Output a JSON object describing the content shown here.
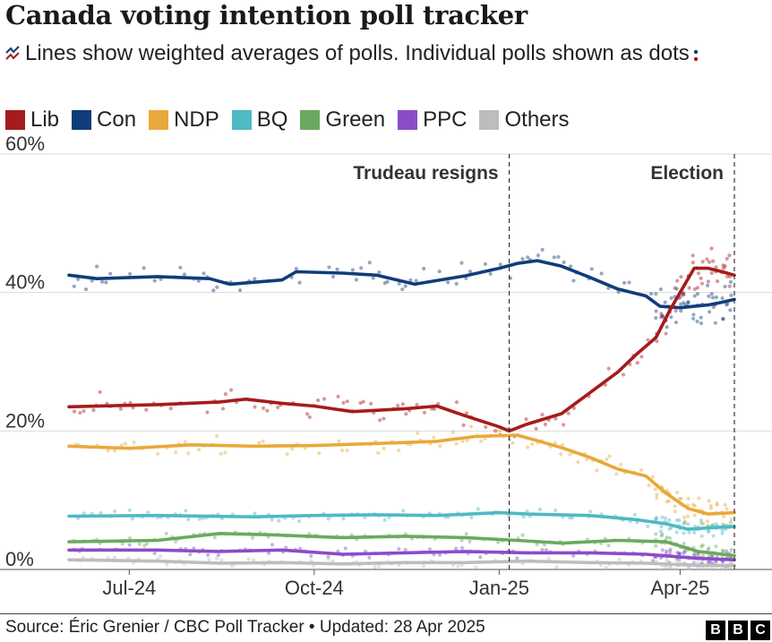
{
  "title": "Canada voting intention poll tracker",
  "subtitle": "Lines show weighted averages of polls. Individual polls shown as dots",
  "source": "Source: Éric Grenier / CBC Poll Tracker • Updated: 28 Apr 2025",
  "logo": [
    "B",
    "B",
    "C"
  ],
  "chart_data": {
    "type": "line",
    "title": "Canada voting intention poll tracker",
    "xlabel": "",
    "ylabel": "",
    "ylim": [
      0,
      60
    ],
    "yticks": [
      0,
      20,
      40,
      60
    ],
    "ytick_labels": [
      "0%",
      "20%",
      "40%",
      "60%"
    ],
    "xlim": [
      "2024-06-01",
      "2025-04-28"
    ],
    "xticks": [
      {
        "date": "2024-07-01",
        "label": "Jul-24"
      },
      {
        "date": "2024-10-01",
        "label": "Oct-24"
      },
      {
        "date": "2025-01-01",
        "label": "Jan-25"
      },
      {
        "date": "2025-04-01",
        "label": "Apr-25"
      }
    ],
    "grid": true,
    "legend_position": "top",
    "annotations": [
      {
        "date": "2025-01-06",
        "label": "Trudeau resigns"
      },
      {
        "date": "2025-04-28",
        "label": "Election"
      }
    ],
    "series": [
      {
        "name": "Lib",
        "color": "#a61b1b",
        "points": [
          [
            "2024-06-01",
            23.5
          ],
          [
            "2024-07-15",
            23.8
          ],
          [
            "2024-08-15",
            24.2
          ],
          [
            "2024-08-28",
            24.6
          ],
          [
            "2024-09-15",
            24.0
          ],
          [
            "2024-10-01",
            23.6
          ],
          [
            "2024-10-20",
            22.8
          ],
          [
            "2024-11-15",
            23.2
          ],
          [
            "2024-12-01",
            23.6
          ],
          [
            "2024-12-15",
            22.2
          ],
          [
            "2025-01-01",
            20.6
          ],
          [
            "2025-01-06",
            20.0
          ],
          [
            "2025-01-15",
            21.0
          ],
          [
            "2025-02-01",
            22.5
          ],
          [
            "2025-02-15",
            25.5
          ],
          [
            "2025-03-01",
            28.5
          ],
          [
            "2025-03-10",
            31.0
          ],
          [
            "2025-03-20",
            33.5
          ],
          [
            "2025-03-27",
            37.5
          ],
          [
            "2025-04-01",
            40.0
          ],
          [
            "2025-04-08",
            43.5
          ],
          [
            "2025-04-15",
            43.5
          ],
          [
            "2025-04-22",
            43.0
          ],
          [
            "2025-04-28",
            42.5
          ]
        ]
      },
      {
        "name": "Con",
        "color": "#0f3d7a",
        "points": [
          [
            "2024-06-01",
            42.5
          ],
          [
            "2024-06-15",
            42.0
          ],
          [
            "2024-07-15",
            42.3
          ],
          [
            "2024-08-10",
            42.0
          ],
          [
            "2024-08-20",
            41.2
          ],
          [
            "2024-09-15",
            41.8
          ],
          [
            "2024-09-22",
            43.0
          ],
          [
            "2024-10-15",
            42.8
          ],
          [
            "2024-11-01",
            42.5
          ],
          [
            "2024-11-20",
            41.2
          ],
          [
            "2024-12-15",
            42.4
          ],
          [
            "2025-01-01",
            43.5
          ],
          [
            "2025-01-10",
            44.2
          ],
          [
            "2025-01-20",
            44.6
          ],
          [
            "2025-02-01",
            43.8
          ],
          [
            "2025-02-15",
            42.2
          ],
          [
            "2025-03-01",
            40.5
          ],
          [
            "2025-03-15",
            39.5
          ],
          [
            "2025-03-22",
            38.0
          ],
          [
            "2025-04-01",
            37.8
          ],
          [
            "2025-04-08",
            38.0
          ],
          [
            "2025-04-15",
            38.2
          ],
          [
            "2025-04-22",
            38.6
          ],
          [
            "2025-04-28",
            39.0
          ]
        ]
      },
      {
        "name": "NDP",
        "color": "#e8a93a",
        "points": [
          [
            "2024-06-01",
            17.8
          ],
          [
            "2024-07-01",
            17.5
          ],
          [
            "2024-08-01",
            18.0
          ],
          [
            "2024-09-01",
            17.8
          ],
          [
            "2024-10-01",
            17.9
          ],
          [
            "2024-11-01",
            18.2
          ],
          [
            "2024-12-01",
            18.5
          ],
          [
            "2024-12-20",
            19.2
          ],
          [
            "2025-01-10",
            19.4
          ],
          [
            "2025-01-20",
            18.6
          ],
          [
            "2025-02-01",
            17.6
          ],
          [
            "2025-02-15",
            16.2
          ],
          [
            "2025-03-01",
            14.5
          ],
          [
            "2025-03-15",
            13.5
          ],
          [
            "2025-03-25",
            11.0
          ],
          [
            "2025-04-05",
            8.8
          ],
          [
            "2025-04-15",
            8.0
          ],
          [
            "2025-04-28",
            8.2
          ]
        ]
      },
      {
        "name": "BQ",
        "color": "#4fb9c4",
        "points": [
          [
            "2024-06-01",
            7.7
          ],
          [
            "2024-07-15",
            7.8
          ],
          [
            "2024-09-01",
            7.6
          ],
          [
            "2024-10-01",
            7.8
          ],
          [
            "2024-11-01",
            7.9
          ],
          [
            "2024-12-01",
            7.8
          ],
          [
            "2025-01-01",
            8.2
          ],
          [
            "2025-01-15",
            8.0
          ],
          [
            "2025-02-15",
            7.8
          ],
          [
            "2025-03-10",
            7.2
          ],
          [
            "2025-03-25",
            6.6
          ],
          [
            "2025-04-05",
            5.8
          ],
          [
            "2025-04-15",
            6.0
          ],
          [
            "2025-04-28",
            6.2
          ]
        ]
      },
      {
        "name": "Green",
        "color": "#6aaa5f",
        "points": [
          [
            "2024-06-01",
            4.0
          ],
          [
            "2024-07-15",
            4.2
          ],
          [
            "2024-08-15",
            5.2
          ],
          [
            "2024-09-10",
            5.0
          ],
          [
            "2024-10-15",
            4.6
          ],
          [
            "2024-11-15",
            4.8
          ],
          [
            "2024-12-15",
            4.6
          ],
          [
            "2025-01-10",
            4.2
          ],
          [
            "2025-02-01",
            3.8
          ],
          [
            "2025-03-01",
            4.2
          ],
          [
            "2025-03-25",
            4.0
          ],
          [
            "2025-04-10",
            2.6
          ],
          [
            "2025-04-28",
            2.0
          ]
        ]
      },
      {
        "name": "PPC",
        "color": "#8a4cc9",
        "points": [
          [
            "2024-06-01",
            2.8
          ],
          [
            "2024-07-15",
            2.8
          ],
          [
            "2024-08-15",
            2.6
          ],
          [
            "2024-09-15",
            2.8
          ],
          [
            "2024-10-15",
            2.2
          ],
          [
            "2024-11-15",
            2.4
          ],
          [
            "2024-12-15",
            2.6
          ],
          [
            "2025-01-15",
            2.4
          ],
          [
            "2025-02-15",
            2.4
          ],
          [
            "2025-03-15",
            2.2
          ],
          [
            "2025-04-10",
            1.6
          ],
          [
            "2025-04-28",
            1.4
          ]
        ]
      },
      {
        "name": "Others",
        "color": "#bdbdbd",
        "points": [
          [
            "2024-06-01",
            1.4
          ],
          [
            "2024-07-15",
            1.2
          ],
          [
            "2024-08-15",
            0.9
          ],
          [
            "2024-09-15",
            1.0
          ],
          [
            "2024-10-15",
            0.8
          ],
          [
            "2024-11-15",
            1.0
          ],
          [
            "2024-12-15",
            1.0
          ],
          [
            "2025-01-15",
            1.2
          ],
          [
            "2025-02-15",
            1.0
          ],
          [
            "2025-03-15",
            0.9
          ],
          [
            "2025-04-10",
            0.6
          ],
          [
            "2025-04-28",
            0.6
          ]
        ]
      }
    ]
  }
}
